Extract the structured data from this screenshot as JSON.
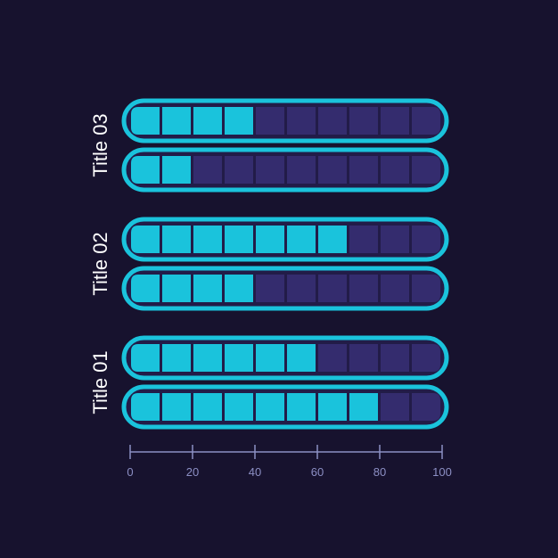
{
  "colors": {
    "background": "#17122e",
    "filled": "#1ac3dc",
    "empty": "#342c6e",
    "outline": "#1ac3dc",
    "capsule_bg": "#221c48",
    "axis": "#8c8fc4",
    "title_text": "#ffffff",
    "tick_text": "#8c8fc4"
  },
  "chart_data": {
    "type": "bar",
    "orientation": "horizontal",
    "style": "segmented-capsule",
    "segments_per_bar": 10,
    "categories": [
      "Title 03",
      "Title 02",
      "Title 01"
    ],
    "groups": [
      {
        "label": "Title 03",
        "values": [
          40,
          20
        ]
      },
      {
        "label": "Title 02",
        "values": [
          70,
          40
        ]
      },
      {
        "label": "Title 01",
        "values": [
          60,
          80
        ]
      }
    ],
    "xlim": [
      0,
      100
    ],
    "x_ticks": [
      "0",
      "20",
      "40",
      "60",
      "80",
      "100"
    ],
    "grid": false
  }
}
